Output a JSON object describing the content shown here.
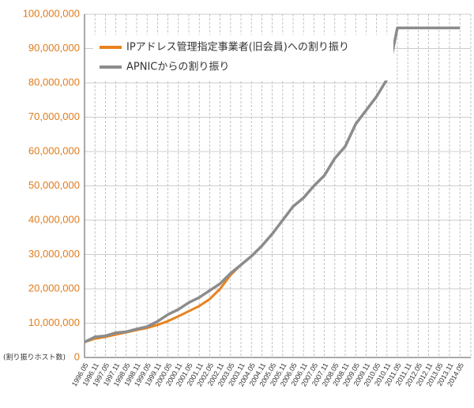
{
  "chart_data": {
    "type": "line",
    "y_label": "(割り振りホスト数)",
    "categories": [
      "1996.05",
      "1996.11",
      "1997.05",
      "1997.11",
      "1998.05",
      "1998.11",
      "1999.05",
      "1999.11",
      "2000.05",
      "2000.11",
      "2001.05",
      "2001.11",
      "2002.05",
      "2002.11",
      "2003.05",
      "2003.11",
      "2004.05",
      "2004.11",
      "2005.05",
      "2005.11",
      "2006.05",
      "2006.11",
      "2007.05",
      "2007.11",
      "2008.05",
      "2008.11",
      "2009.05",
      "2009.11",
      "2010.05",
      "2010.11",
      "2011.05",
      "2011.11",
      "2012.05",
      "2012.11",
      "2013.05",
      "2013.11",
      "2014.05"
    ],
    "series": [
      {
        "name": "IPアドレス管理指定事業者(旧会員)への割り振り",
        "color": "#e8821e",
        "values": [
          4500000,
          5500000,
          6000000,
          6700000,
          7300000,
          8000000,
          8600000,
          9500000,
          10600000,
          12000000,
          13500000,
          15000000,
          17000000,
          20000000,
          24000000,
          27000000,
          29500000,
          32500000,
          36000000,
          40000000,
          44000000,
          46500000,
          50000000,
          53000000,
          58000000,
          61500000,
          68000000,
          72000000,
          76000000,
          81000000,
          null,
          null,
          null,
          null,
          null,
          null,
          null
        ]
      },
      {
        "name": "APNICからの割り振り",
        "color": "#8c8c8c",
        "values": [
          4500000,
          6000000,
          6300000,
          7200000,
          7500000,
          8300000,
          9000000,
          10500000,
          12500000,
          14000000,
          16000000,
          17500000,
          19500000,
          21500000,
          24500000,
          27000000,
          29500000,
          32500000,
          36000000,
          40000000,
          44000000,
          46500000,
          50000000,
          53000000,
          58000000,
          61500000,
          68000000,
          72000000,
          76000000,
          81000000,
          96000000,
          96000000,
          96000000,
          96000000,
          96000000,
          96000000,
          96000000
        ]
      }
    ],
    "ylim": [
      0,
      100000000
    ],
    "yticks": [
      0,
      {
        "value": 10000000,
        "label": "10,000,000"
      },
      {
        "value": 20000000,
        "label": "20,000,000"
      },
      {
        "value": 30000000,
        "label": "30,000,000"
      },
      {
        "value": 40000000,
        "label": "40,000,000"
      },
      {
        "value": 50000000,
        "label": "50,000,000"
      },
      {
        "value": 60000000,
        "label": "60,000,000"
      },
      {
        "value": 70000000,
        "label": "70,000,000"
      },
      {
        "value": 80000000,
        "label": "80,000,000"
      },
      {
        "value": 90000000,
        "label": "90,000,000"
      },
      {
        "value": 100000000,
        "label": "100,000,000"
      }
    ],
    "grid": true
  }
}
